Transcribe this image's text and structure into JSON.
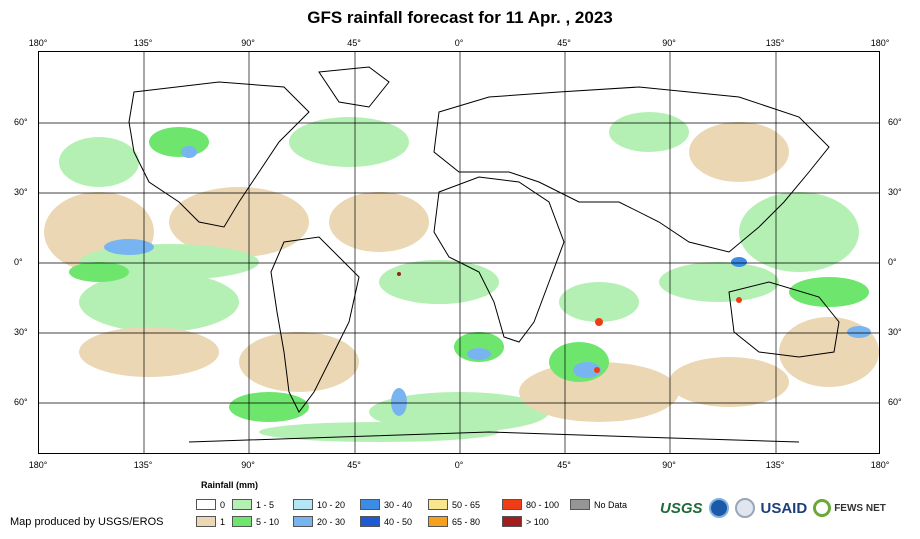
{
  "title": "GFS rainfall forecast for 11 Apr. , 2023",
  "map": {
    "lon_ticks": [
      "180°",
      "135°",
      "90°",
      "45°",
      "0°",
      "45°",
      "90°",
      "135°",
      "180°"
    ],
    "lat_ticks": [
      "60°",
      "30°",
      "0°",
      "30°",
      "60°"
    ],
    "gridlines": true
  },
  "legend": {
    "title": "Rainfall (mm)",
    "items": [
      {
        "label": "0",
        "color": "#ffffff"
      },
      {
        "label": "1",
        "color": "#ebd7b4"
      },
      {
        "label": "1 - 5",
        "color": "#b4f0b4"
      },
      {
        "label": "5 - 10",
        "color": "#6ee66e"
      },
      {
        "label": "10 - 20",
        "color": "#b4e6f5"
      },
      {
        "label": "20 - 30",
        "color": "#78b4f0"
      },
      {
        "label": "30 - 40",
        "color": "#3c8ce6"
      },
      {
        "label": "40 - 50",
        "color": "#1e5ad2"
      },
      {
        "label": "50 - 65",
        "color": "#fae68c"
      },
      {
        "label": "65 - 80",
        "color": "#f5a01e"
      },
      {
        "label": "80 - 100",
        "color": "#f03c14"
      },
      {
        "label": "> 100",
        "color": "#a01e1e"
      },
      {
        "label": "No Data",
        "color": "#969696"
      }
    ]
  },
  "credit": "Map produced by USGS/EROS",
  "logos": {
    "usgs": "USGS",
    "usaid": "USAID",
    "fews": "FEWS NET"
  }
}
